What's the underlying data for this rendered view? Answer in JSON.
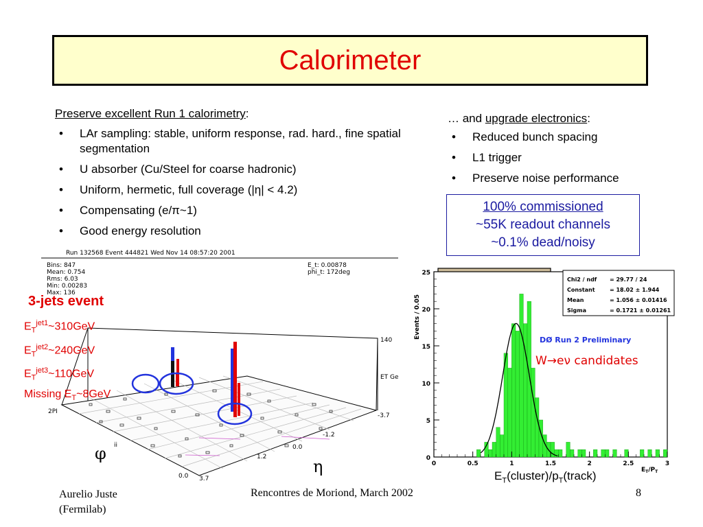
{
  "title": "Calorimeter",
  "left": {
    "header_link": "Preserve excellent Run 1 calorimetry",
    "header_suffix": ":",
    "bullets": [
      "LAr sampling: stable, uniform response, rad. hard., fine spatial segmentation",
      "U absorber (Cu/Steel for coarse hadronic)",
      "Uniform, hermetic, full coverage (|η| < 4.2)",
      "Compensating (e/π~1)",
      "Good energy resolution"
    ]
  },
  "right": {
    "header_prefix": "… and ",
    "header_link": "upgrade electronics",
    "header_suffix": ":",
    "bullets": [
      "Reduced bunch spacing",
      "L1 trigger",
      "Preserve noise performance"
    ]
  },
  "commission_box": {
    "line1": "100% commissioned",
    "line2": "~55K readout channels",
    "line3": "~0.1% dead/noisy"
  },
  "event_display": {
    "header": "Run 132568 Event 444821 Wed Nov 14 08:57:20 2001",
    "stats": [
      "Bins: 847",
      "Mean: 0.754",
      "Rms: 6.03",
      "Min: 0.00283",
      "Max: 136"
    ],
    "et_info": [
      "E_t: 0.00878",
      "phi_t: 172deg"
    ],
    "axis_labels": {
      "z_max": "140",
      "z_unit": "ET GeV",
      "phi_top": "2PI",
      "eta_neg": "-3.7",
      "eta_m12": "-1.2",
      "eta_00": "0.0",
      "eta_12": "1.2",
      "eta_37": "3.7",
      "phi_zero": "0.0",
      "ii": "ii"
    },
    "phi_symbol": "φ",
    "eta_symbol": "η",
    "event_title": "3-jets event",
    "jets": [
      {
        "sup": "jet1",
        "value": "~310GeV"
      },
      {
        "sup": "jet2",
        "value": "~240GeV"
      },
      {
        "sup": "jet3",
        "value": "~110GeV"
      }
    ],
    "missing_prefix": "Missing E",
    "missing_sub": "T",
    "missing_value": "~8GeV",
    "et_symbol": "E",
    "et_sub": "T"
  },
  "histogram": {
    "title_main": "E",
    "title_sub1": "T",
    "title_sep": "/P",
    "title_sub2": "T",
    "fit_stats": [
      {
        "label": "Chi2 / ndf",
        "value": "= 29.77 / 24"
      },
      {
        "label": "Constant",
        "value": "= 18.02 ± 1.944"
      },
      {
        "label": "Mean",
        "value": "= 1.056 ± 0.01416"
      },
      {
        "label": "Sigma",
        "value": "= 0.1721 ± 0.01261"
      }
    ],
    "preliminary": "DØ Run 2  Preliminary",
    "candidates_label": "W→eν candidates",
    "ylabel": "Events / 0.05",
    "xaxis_tag": "E",
    "xaxis_tag_sub1": "T",
    "xaxis_tag_mid": "/P",
    "xaxis_tag_sub2": "T",
    "xlabel_main": "E",
    "xlabel_sub1": "T",
    "xlabel_mid": "(cluster)/p",
    "xlabel_sub2": "T",
    "xlabel_end": "(track)"
  },
  "chart_data": {
    "type": "bar",
    "title": "ET/PT",
    "xlabel": "ET(cluster)/pT(track)",
    "ylabel": "Events / 0.05",
    "xlim": [
      0,
      3
    ],
    "ylim": [
      0,
      25
    ],
    "x_ticks": [
      "0",
      "0.5",
      "1",
      "1.5",
      "2",
      "2.5",
      "3"
    ],
    "y_ticks": [
      "0",
      "5",
      "10",
      "15",
      "20",
      "25"
    ],
    "bin_width": 0.05,
    "x": [
      0.55,
      0.6,
      0.65,
      0.7,
      0.75,
      0.8,
      0.85,
      0.9,
      0.95,
      1.0,
      1.05,
      1.1,
      1.15,
      1.2,
      1.25,
      1.3,
      1.35,
      1.4,
      1.45,
      1.5,
      1.55,
      1.6,
      1.65,
      1.7,
      1.75,
      1.8,
      1.85,
      1.9,
      1.95,
      2.0,
      2.05,
      2.1,
      2.15,
      2.2,
      2.25,
      2.3,
      2.35,
      2.4,
      2.45,
      2.5,
      2.55,
      2.6,
      2.65,
      2.7,
      2.75,
      2.8,
      2.85,
      2.9,
      2.95
    ],
    "values": [
      1,
      0,
      2,
      1,
      2,
      4,
      3,
      14,
      12,
      18,
      17,
      22,
      18,
      21,
      12,
      8,
      5,
      3,
      2,
      2,
      1,
      1,
      0,
      2,
      1,
      0,
      1,
      1,
      0,
      0,
      1,
      0,
      1,
      1,
      0,
      1,
      0,
      0,
      1,
      0,
      0,
      0,
      1,
      0,
      1,
      0,
      1,
      0,
      1
    ],
    "fit": {
      "type": "gaussian",
      "constant": 18.02,
      "mean": 1.056,
      "sigma": 0.1721
    },
    "fill_color": "#33ee33"
  },
  "footer": {
    "author": "Aurelio Juste",
    "affiliation": "(Fermilab)",
    "conference": "Rencontres de Moriond, March 2002",
    "page": "8"
  }
}
